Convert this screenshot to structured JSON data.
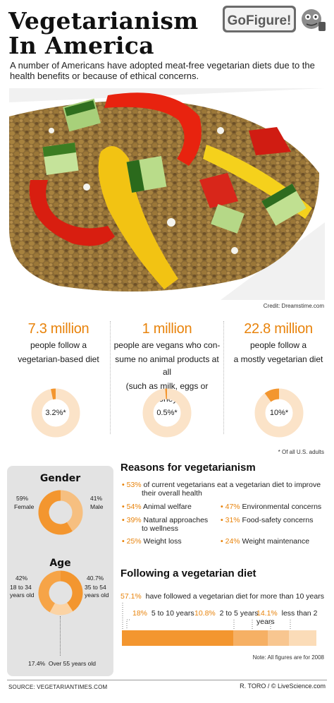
{
  "header": {
    "title_line1": "Vegetarianism",
    "title_line2": "In America",
    "logo_text": "GoFigure!",
    "intro": "A number of Americans have adopted meat-free vegetarian diets due to the health benefits or because of ethical concerns."
  },
  "photo": {
    "credit": "Credit: Dreamstime.com"
  },
  "stats": [
    {
      "big": "7.3 million",
      "line1": "people follow a",
      "line2": "vegetarian-based diet",
      "line3": "",
      "pct_label": "3.2%*",
      "pct": 3.2
    },
    {
      "big": "1 million",
      "line1": "people are vegans who con-",
      "line2": "sume no animal products at all",
      "line3": "(such as milk, eggs or honey)",
      "pct_label": "0.5%*",
      "pct": 0.5
    },
    {
      "big": "22.8 million",
      "line1": "people follow a",
      "line2": "a mostly vegetarian diet",
      "line3": "",
      "pct_label": "10%*",
      "pct": 10
    }
  ],
  "footnote": "* Of all U.S. adults",
  "gender": {
    "title": "Gender",
    "female_pct": "59%",
    "female_label": "Female",
    "female_value": 59,
    "male_pct": "41%",
    "male_label": "Male",
    "male_value": 41
  },
  "age": {
    "title": "Age",
    "young_pct": "42%",
    "young_label_1": "18 to 34",
    "young_label_2": "years old",
    "young_value": 42,
    "mid_pct": "40.7%",
    "mid_label_1": "35 to 54",
    "mid_label_2": "years old",
    "mid_value": 40.7,
    "old_pct": "17.4%",
    "old_label": "Over 55 years old",
    "old_value": 17.4
  },
  "reasons": {
    "title": "Reasons for vegetarianism",
    "items": [
      {
        "pct": "53%",
        "text1": "of current vegetarians eat a vegetarian diet to improve",
        "text2": "their overall health"
      },
      {
        "pct": "54%",
        "text1": "Animal welfare",
        "text2": ""
      },
      {
        "pct": "47%",
        "text1": "Environmental concerns",
        "text2": ""
      },
      {
        "pct": "39%",
        "text1": "Natural approaches",
        "text2": "to wellness"
      },
      {
        "pct": "31%",
        "text1": "Food-safety concerns",
        "text2": ""
      },
      {
        "pct": "25%",
        "text1": "Weight loss",
        "text2": ""
      },
      {
        "pct": "24%",
        "text1": "Weight maintenance",
        "text2": ""
      }
    ]
  },
  "following": {
    "title": "Following a vegetarian diet",
    "over10_pct": "57.1%",
    "over10_text": "have followed a vegetarian diet for more than 10 years",
    "over10_value": 57.1,
    "y5to10_pct": "18%",
    "y5to10_text": "5 to 10 years",
    "y5to10_value": 18,
    "y2to5_pct": "10.8%",
    "y2to5_text": "2 to 5 years",
    "y2to5_value": 10.8,
    "lt2_pct": "14.1%",
    "lt2_text": "less than 2 years",
    "lt2_value": 14.1,
    "note": "Note: All figures are for 2008"
  },
  "colors": {
    "orange": "#f3962f",
    "light": "#fbe3c8",
    "lighter": "#f6bf80",
    "panel": "#e3e3e3"
  },
  "footer": {
    "source": "SOURCE: VEGETARIANTIMES.COM",
    "byline": "R. TORO / © LiveScience.com"
  }
}
